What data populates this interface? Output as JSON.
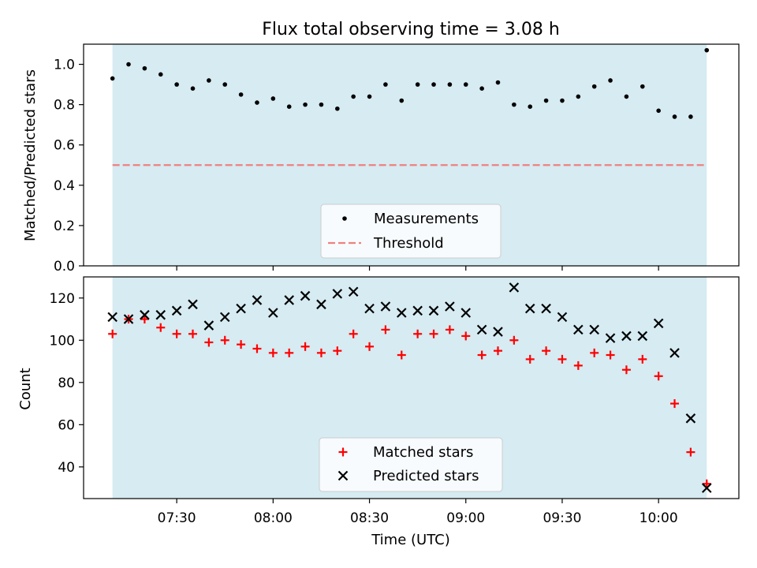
{
  "figure": {
    "title": "Flux total observing time = 3.08 h",
    "xlabel": "Time (UTC)"
  },
  "colors": {
    "shade": "#add8e6",
    "threshold": "#f08080",
    "measurements": "#000000",
    "matched": "#ff0000",
    "predicted": "#000000"
  },
  "chart_data": [
    {
      "type": "scatter",
      "ylabel": "Matched/Predicted stars",
      "xlim": [
        "07:01",
        "10:25"
      ],
      "ylim": [
        0,
        1.1
      ],
      "yticks": [
        0.0,
        0.2,
        0.4,
        0.6,
        0.8,
        1.0
      ],
      "ytick_labels": [
        "0.0",
        "0.2",
        "0.4",
        "0.6",
        "0.8",
        "1.0"
      ],
      "shaded_span": [
        "07:10",
        "10:15"
      ],
      "threshold": 0.5,
      "legend_position": "lower center",
      "legend": {
        "measurements": "Measurements",
        "threshold": "Threshold"
      },
      "x": [
        "07:10",
        "07:15",
        "07:20",
        "07:25",
        "07:30",
        "07:35",
        "07:40",
        "07:45",
        "07:50",
        "07:55",
        "08:00",
        "08:05",
        "08:10",
        "08:15",
        "08:20",
        "08:25",
        "08:30",
        "08:35",
        "08:40",
        "08:45",
        "08:50",
        "08:55",
        "09:00",
        "09:05",
        "09:10",
        "09:15",
        "09:20",
        "09:25",
        "09:30",
        "09:35",
        "09:40",
        "09:45",
        "09:50",
        "09:55",
        "10:00",
        "10:05",
        "10:10",
        "10:15"
      ],
      "series": [
        {
          "name": "Measurements",
          "values": [
            0.93,
            1.0,
            0.98,
            0.95,
            0.9,
            0.88,
            0.92,
            0.9,
            0.85,
            0.81,
            0.83,
            0.79,
            0.8,
            0.8,
            0.78,
            0.84,
            0.84,
            0.9,
            0.82,
            0.9,
            0.9,
            0.9,
            0.9,
            0.88,
            0.91,
            0.8,
            0.79,
            0.82,
            0.82,
            0.84,
            0.89,
            0.92,
            0.84,
            0.89,
            0.77,
            0.74,
            0.74,
            1.07
          ]
        }
      ]
    },
    {
      "type": "scatter",
      "ylabel": "Count",
      "xlim": [
        "07:01",
        "10:25"
      ],
      "ylim": [
        25,
        130
      ],
      "yticks": [
        40,
        60,
        80,
        100,
        120
      ],
      "ytick_labels": [
        "40",
        "60",
        "80",
        "100",
        "120"
      ],
      "xticks": [
        "07:30",
        "08:00",
        "08:30",
        "09:00",
        "09:30",
        "10:00"
      ],
      "shaded_span": [
        "07:10",
        "10:15"
      ],
      "legend_position": "lower center",
      "x": [
        "07:10",
        "07:15",
        "07:20",
        "07:25",
        "07:30",
        "07:35",
        "07:40",
        "07:45",
        "07:50",
        "07:55",
        "08:00",
        "08:05",
        "08:10",
        "08:15",
        "08:20",
        "08:25",
        "08:30",
        "08:35",
        "08:40",
        "08:45",
        "08:50",
        "08:55",
        "09:00",
        "09:05",
        "09:10",
        "09:15",
        "09:20",
        "09:25",
        "09:30",
        "09:35",
        "09:40",
        "09:45",
        "09:50",
        "09:55",
        "10:00",
        "10:05",
        "10:10",
        "10:15"
      ],
      "series": [
        {
          "name": "Matched stars",
          "marker": "+",
          "values": [
            103,
            110,
            110,
            106,
            103,
            103,
            99,
            100,
            98,
            96,
            94,
            94,
            97,
            94,
            95,
            103,
            97,
            105,
            93,
            103,
            103,
            105,
            102,
            93,
            95,
            100,
            91,
            95,
            91,
            88,
            94,
            93,
            86,
            91,
            83,
            70,
            47,
            32
          ]
        },
        {
          "name": "Predicted stars",
          "marker": "x",
          "values": [
            111,
            110,
            112,
            112,
            114,
            117,
            107,
            111,
            115,
            119,
            113,
            119,
            121,
            117,
            122,
            123,
            115,
            116,
            113,
            114,
            114,
            116,
            113,
            105,
            104,
            125,
            115,
            115,
            111,
            105,
            105,
            101,
            102,
            102,
            108,
            94,
            63,
            30
          ]
        }
      ]
    }
  ]
}
